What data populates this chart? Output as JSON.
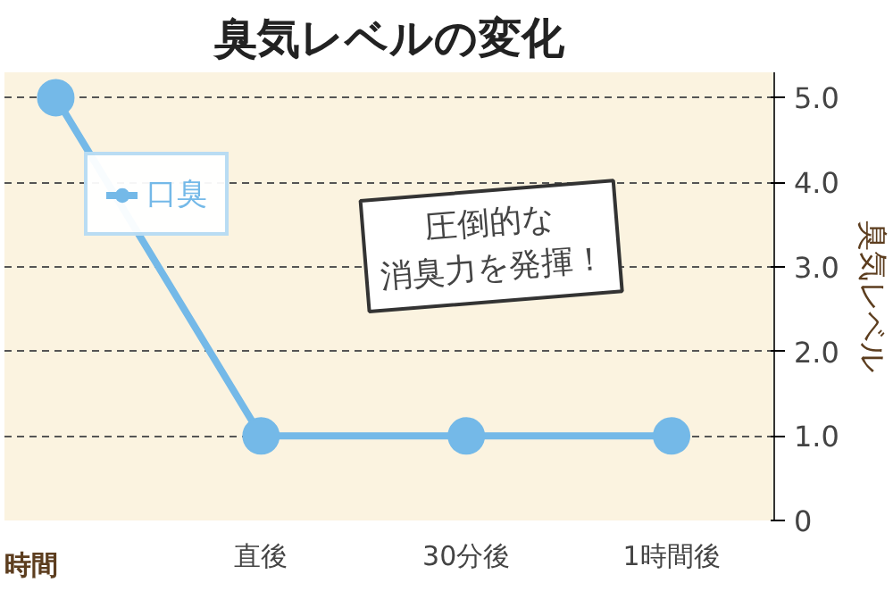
{
  "chart_data": {
    "type": "line",
    "title": "臭気レベルの変化",
    "xlabel": "時間",
    "ylabel": "臭気レベル",
    "categories": [
      null,
      "直後",
      "30分後",
      "1時間後"
    ],
    "series": [
      {
        "name": "口臭",
        "color": "#74b9e8",
        "values": [
          5.0,
          1.0,
          1.0,
          1.0
        ]
      }
    ],
    "ylim": [
      0,
      5.3
    ],
    "yticks": [
      0,
      {
        "value": 1,
        "label": "1.0"
      },
      {
        "value": 2,
        "label": "2.0"
      },
      {
        "value": 3,
        "label": "3.0"
      },
      {
        "value": 4,
        "label": "4.0"
      },
      {
        "value": 5,
        "label": "5.0"
      }
    ],
    "grid": "y",
    "legend": "top left",
    "marker": "circle",
    "line_style": "solid",
    "annotations": [
      "圧倒的な",
      "消臭力を発揮！"
    ]
  }
}
